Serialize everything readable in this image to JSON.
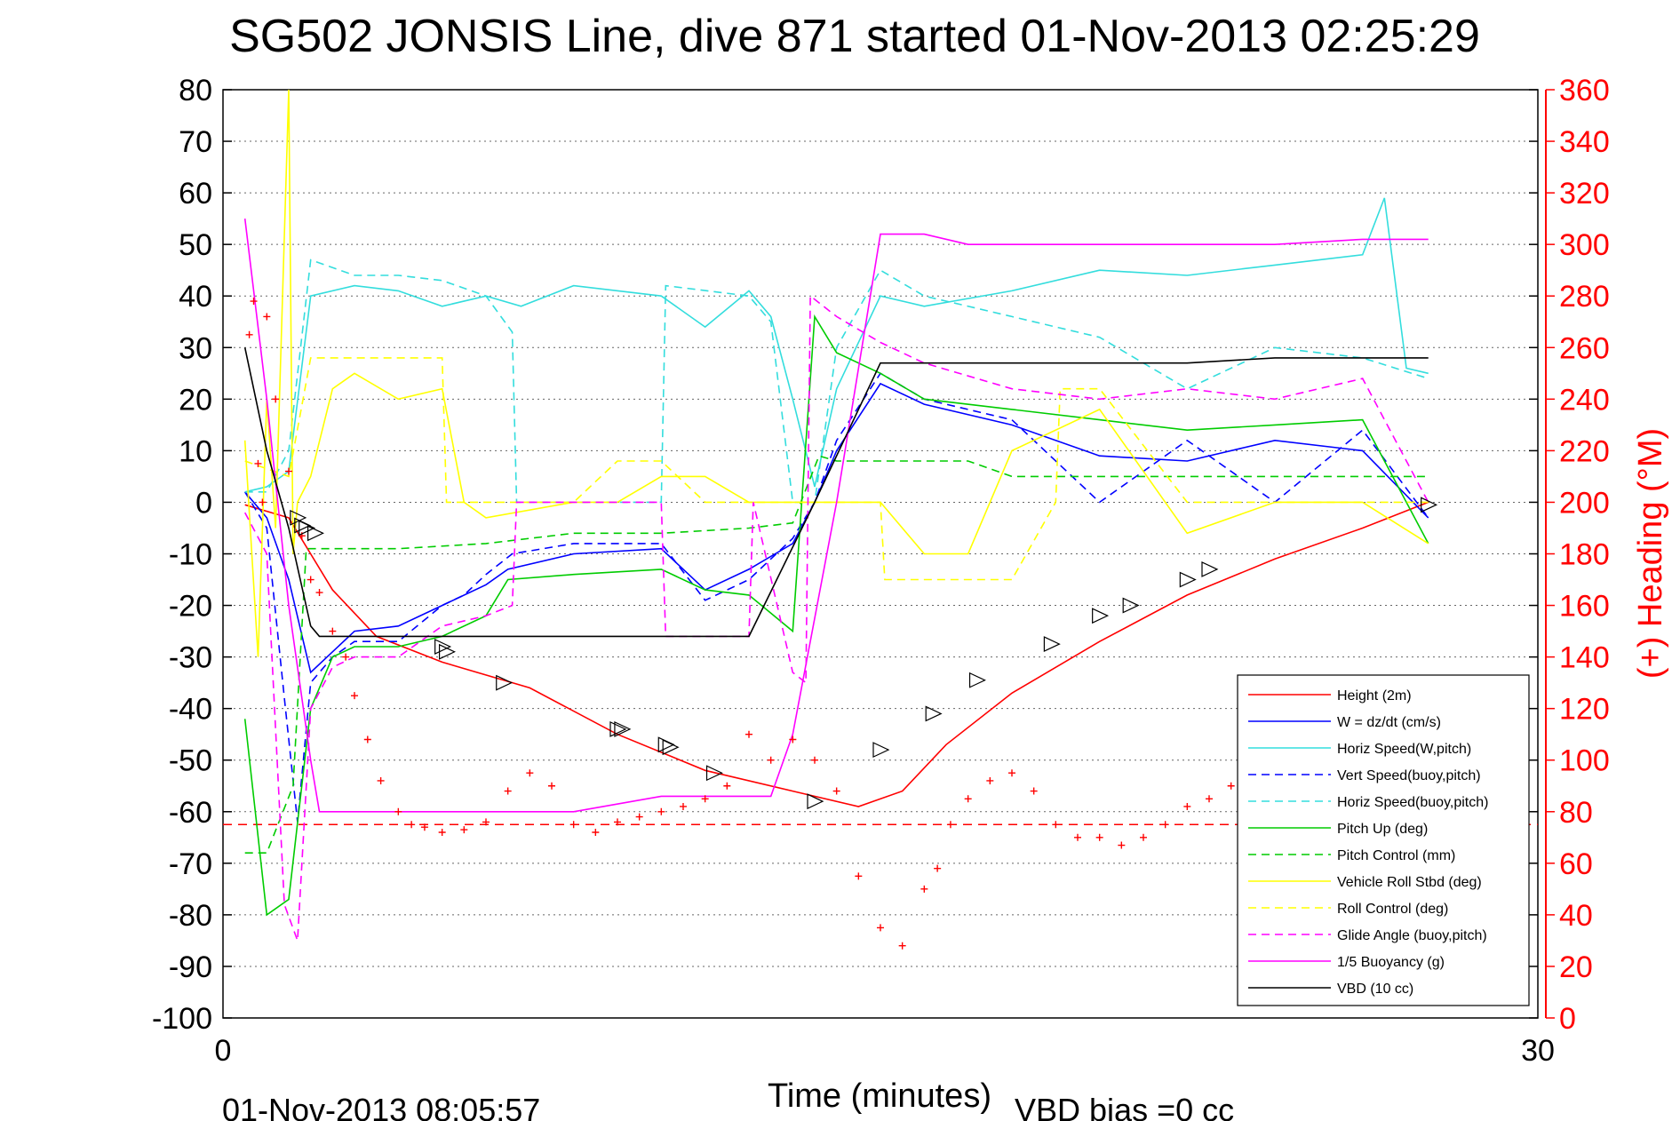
{
  "chart_data": {
    "type": "line",
    "title": "SG502 JONSIS Line, dive 871 started 01-Nov-2013 02:25:29",
    "xlabel": "Time (minutes)",
    "ylabel_right": "(+) Heading (°M)",
    "xlim": [
      0,
      30
    ],
    "ylim": [
      -100,
      80
    ],
    "ylim_right": [
      0,
      360
    ],
    "x_ticks": [
      "0",
      "30"
    ],
    "y_ticks": [
      "80",
      "70",
      "60",
      "50",
      "40",
      "30",
      "20",
      "10",
      "0",
      "-10",
      "-20",
      "-30",
      "-40",
      "-50",
      "-60",
      "-70",
      "-80",
      "-90",
      "-100"
    ],
    "y_right_ticks": [
      "360",
      "340",
      "320",
      "300",
      "280",
      "260",
      "240",
      "220",
      "200",
      "180",
      "160",
      "140",
      "120",
      "100",
      "80",
      "60",
      "40",
      "20",
      "0"
    ],
    "grid": true,
    "legend_position": "bottom-right",
    "footer_left": "01-Nov-2013 08:05:57",
    "footer_right": "VBD bias =0 cc",
    "series": [
      {
        "name": "Height (2m)",
        "color": "#ff0000",
        "style": "solid",
        "x": [
          0.5,
          1.5,
          2.5,
          3.5,
          5,
          7,
          9,
          11,
          13,
          14.5,
          15.5,
          16.5,
          18,
          20,
          22,
          24,
          26,
          27.5
        ],
        "y": [
          -0.5,
          -3,
          -17,
          -26,
          -31,
          -36,
          -45,
          -52,
          -56,
          -59,
          -56,
          -47,
          -37,
          -27,
          -18,
          -11,
          -5,
          0
        ]
      },
      {
        "name": "W = dz/dt (cm/s)",
        "color": "#0000ff",
        "style": "solid",
        "x": [
          0.5,
          1,
          1.5,
          2,
          2.5,
          3,
          4,
          5,
          6,
          6.5,
          8,
          10,
          11,
          12,
          13,
          13.5,
          14,
          15,
          16,
          18,
          20,
          22,
          24,
          26,
          27.5
        ],
        "y": [
          2,
          -3,
          -15,
          -33,
          -29,
          -25,
          -24,
          -20,
          -16,
          -13,
          -10,
          -9,
          -17,
          -13,
          -8,
          0,
          10,
          23,
          19,
          15,
          9,
          8,
          12,
          10,
          -3
        ]
      },
      {
        "name": "Horiz Speed(W,pitch)",
        "color": "#33dddd",
        "style": "solid",
        "x": [
          0.5,
          1,
          1.5,
          2,
          3,
          4,
          5,
          6,
          6.8,
          8,
          10,
          11,
          12,
          12.5,
          13,
          13.5,
          14,
          15,
          16,
          18,
          20,
          22,
          24,
          26,
          26.5,
          27,
          27.5
        ],
        "y": [
          2,
          3,
          6,
          40,
          42,
          41,
          38,
          40,
          38,
          42,
          40,
          34,
          41,
          36,
          20,
          3,
          22,
          40,
          38,
          41,
          45,
          44,
          46,
          48,
          59,
          26,
          25
        ]
      },
      {
        "name": "Vert Speed(buoy,pitch)",
        "color": "#0000ff",
        "style": "dashed",
        "x": [
          0.5,
          1,
          1.4,
          1.7,
          2,
          2.5,
          3,
          4,
          5,
          5.5,
          6,
          6.6,
          8,
          10,
          11,
          12,
          13,
          13.5,
          14,
          15,
          16,
          18,
          20,
          22,
          24,
          26,
          27.5
        ],
        "y": [
          2,
          -5,
          -38,
          -62,
          -35,
          -30,
          -27,
          -27,
          -20,
          -18,
          -14,
          -10,
          -8,
          -8,
          -19,
          -15,
          -7,
          0,
          12,
          25,
          20,
          16,
          0,
          12,
          0,
          14,
          -3
        ]
      },
      {
        "name": "Horiz Speed(buoy,pitch)",
        "color": "#33dddd",
        "style": "dashed",
        "x": [
          0.5,
          1,
          1.5,
          2,
          3,
          4,
          5,
          6,
          6.6,
          6.7,
          8,
          10,
          10.1,
          12,
          12.5,
          13,
          13.5,
          14,
          15,
          16,
          18,
          20,
          22,
          24,
          26,
          27.5
        ],
        "y": [
          2,
          2,
          10,
          47,
          44,
          44,
          43,
          40,
          33,
          0,
          0,
          0,
          42,
          40,
          35,
          0,
          0,
          30,
          45,
          40,
          36,
          32,
          22,
          30,
          28,
          24
        ]
      },
      {
        "name": "Pitch Up (deg)",
        "color": "#00cc00",
        "style": "solid",
        "x": [
          0.5,
          1,
          1.5,
          2,
          2.5,
          3,
          4,
          5,
          6,
          6.5,
          8,
          10,
          11,
          12,
          13,
          13.5,
          14,
          15,
          16,
          18,
          20,
          22,
          24,
          26,
          27.5
        ],
        "y": [
          -42,
          -80,
          -77,
          -40,
          -30,
          -28,
          -28,
          -26,
          -22,
          -15,
          -14,
          -13,
          -17,
          -18,
          -25,
          36,
          29,
          25,
          20,
          18,
          16,
          14,
          15,
          16,
          -8
        ]
      },
      {
        "name": "Pitch Control (mm)",
        "color": "#00cc00",
        "style": "dashed",
        "x": [
          0.5,
          1,
          1.6,
          1.9,
          2.1,
          4,
          6,
          8,
          10,
          12,
          13,
          13.6,
          14,
          16,
          17,
          18,
          20,
          22,
          24,
          26,
          27.5
        ],
        "y": [
          -68,
          -68,
          -55,
          -9,
          -9,
          -9,
          -8,
          -6,
          -6,
          -5,
          -4,
          9,
          8,
          8,
          8,
          5,
          5,
          5,
          5,
          5,
          5
        ]
      },
      {
        "name": "Vehicle Roll Stbd (deg)",
        "color": "#ffff00",
        "style": "solid",
        "x": [
          0.5,
          0.8,
          1,
          1.2,
          1.5,
          1.6,
          1.7,
          2,
          2.5,
          3,
          4,
          5,
          5.5,
          6,
          8,
          9,
          10,
          11,
          12,
          13,
          14,
          15,
          16,
          17,
          18,
          20,
          22,
          24,
          26,
          27.5
        ],
        "y": [
          12,
          -30,
          20,
          -5,
          80,
          -10,
          0,
          5,
          22,
          25,
          20,
          22,
          0,
          -3,
          0,
          0,
          5,
          5,
          0,
          0,
          0,
          0,
          -10,
          -10,
          10,
          18,
          -6,
          0,
          0,
          -8
        ]
      },
      {
        "name": "Roll Control (deg)",
        "color": "#ffff00",
        "style": "dashed",
        "x": [
          0.5,
          1.5,
          2,
          5,
          5.1,
          6,
          8,
          9,
          10,
          11,
          12,
          12.1,
          14,
          15,
          15.1,
          16,
          18,
          19,
          19.1,
          20,
          22,
          24,
          26,
          27.5
        ],
        "y": [
          8,
          5,
          28,
          28,
          0,
          0,
          0,
          8,
          8,
          0,
          0,
          0,
          0,
          0,
          -15,
          -15,
          -15,
          0,
          22,
          22,
          0,
          0,
          0,
          0
        ]
      },
      {
        "name": "Glide Angle (buoy,pitch)",
        "color": "#ff00ff",
        "style": "dashed",
        "x": [
          0.5,
          1,
          1.4,
          1.7,
          2,
          2.5,
          3,
          4,
          5,
          6,
          6.6,
          6.7,
          8,
          10,
          10.1,
          12,
          12.1,
          13,
          13.3,
          13.4,
          14,
          15,
          16,
          18,
          20,
          22,
          24,
          26,
          27.5
        ],
        "y": [
          -2,
          -10,
          -78,
          -85,
          -40,
          -32,
          -30,
          -30,
          -24,
          -22,
          -20,
          0,
          0,
          0,
          -26,
          -26,
          0,
          -33,
          -35,
          40,
          36,
          31,
          27,
          22,
          20,
          22,
          20,
          24,
          0
        ]
      },
      {
        "name": "1/5 Buoyancy (g)",
        "color": "#ff00ff",
        "style": "solid",
        "x": [
          0.5,
          1,
          1.5,
          2,
          2.2,
          3,
          4,
          6,
          8,
          10,
          11.5,
          12.5,
          13,
          14,
          15,
          16,
          17,
          18,
          20,
          22,
          24,
          26,
          27.5
        ],
        "y": [
          55,
          20,
          -20,
          -50,
          -60,
          -60,
          -60,
          -60,
          -60,
          -57,
          -57,
          -57,
          -45,
          0,
          52,
          52,
          50,
          50,
          50,
          50,
          50,
          51,
          51
        ]
      },
      {
        "name": "VBD (10 cc)",
        "color": "#000000",
        "style": "solid",
        "x": [
          0.5,
          1,
          1.5,
          2,
          2.2,
          3,
          5,
          8,
          10,
          12,
          13.5,
          15,
          16,
          18,
          20,
          22,
          24,
          26,
          27.5
        ],
        "y": [
          30,
          10,
          -5,
          -24,
          -26,
          -26,
          -26,
          -26,
          -26,
          -26,
          0,
          27,
          27,
          27,
          27,
          27,
          28,
          28,
          28
        ]
      }
    ],
    "heading_points": {
      "name": "Heading (°M)",
      "color": "#ff0000",
      "marker": "+",
      "axis": "right",
      "x": [
        0.6,
        0.7,
        0.8,
        0.9,
        1.0,
        1.2,
        1.5,
        1.8,
        2.0,
        2.2,
        2.5,
        2.8,
        3.0,
        3.3,
        3.6,
        4.0,
        4.3,
        4.6,
        5.0,
        5.5,
        6.0,
        6.5,
        7.0,
        7.5,
        8.0,
        8.5,
        9.0,
        9.5,
        10.0,
        10.5,
        11.0,
        11.5,
        12.0,
        12.5,
        13.0,
        13.5,
        14.0,
        14.5,
        15.0,
        15.5,
        16.0,
        16.3,
        16.6,
        17.0,
        17.5,
        18.0,
        18.5,
        19.0,
        19.5,
        20.0,
        20.5,
        21.0,
        21.5,
        22.0,
        22.5,
        23.0,
        23.5,
        24.0
      ],
      "y": [
        265,
        278,
        215,
        200,
        272,
        240,
        212,
        187,
        170,
        165,
        150,
        140,
        125,
        108,
        92,
        80,
        75,
        74,
        72,
        73,
        76,
        88,
        95,
        90,
        75,
        72,
        76,
        78,
        80,
        82,
        85,
        90,
        110,
        100,
        108,
        100,
        88,
        55,
        35,
        28,
        50,
        58,
        75,
        85,
        92,
        95,
        88,
        75,
        70,
        70,
        67,
        70,
        75,
        82,
        85,
        90,
        95,
        100
      ]
    },
    "triangle_markers": {
      "color": "#000000",
      "marker": "triangle",
      "x": [
        1.7,
        1.8,
        1.9,
        2.1,
        5.0,
        5.1,
        6.4,
        9.0,
        9.1,
        10.1,
        10.2,
        11.2,
        13.5,
        15.0,
        16.2,
        17.2,
        18.9,
        20.0,
        20.7,
        22.0,
        22.5,
        27.5
      ],
      "y": [
        -3,
        -4.5,
        -5,
        -6,
        -28,
        -29,
        -35,
        -44,
        -44,
        -47,
        -47.5,
        -52.5,
        -58,
        -48,
        -41,
        -34.5,
        -27.5,
        -22,
        -20,
        -15,
        -13,
        -0.5
      ]
    },
    "reference_line": {
      "name": "",
      "color": "#ff0000",
      "style": "dashed",
      "axis": "right",
      "y": 75
    }
  }
}
